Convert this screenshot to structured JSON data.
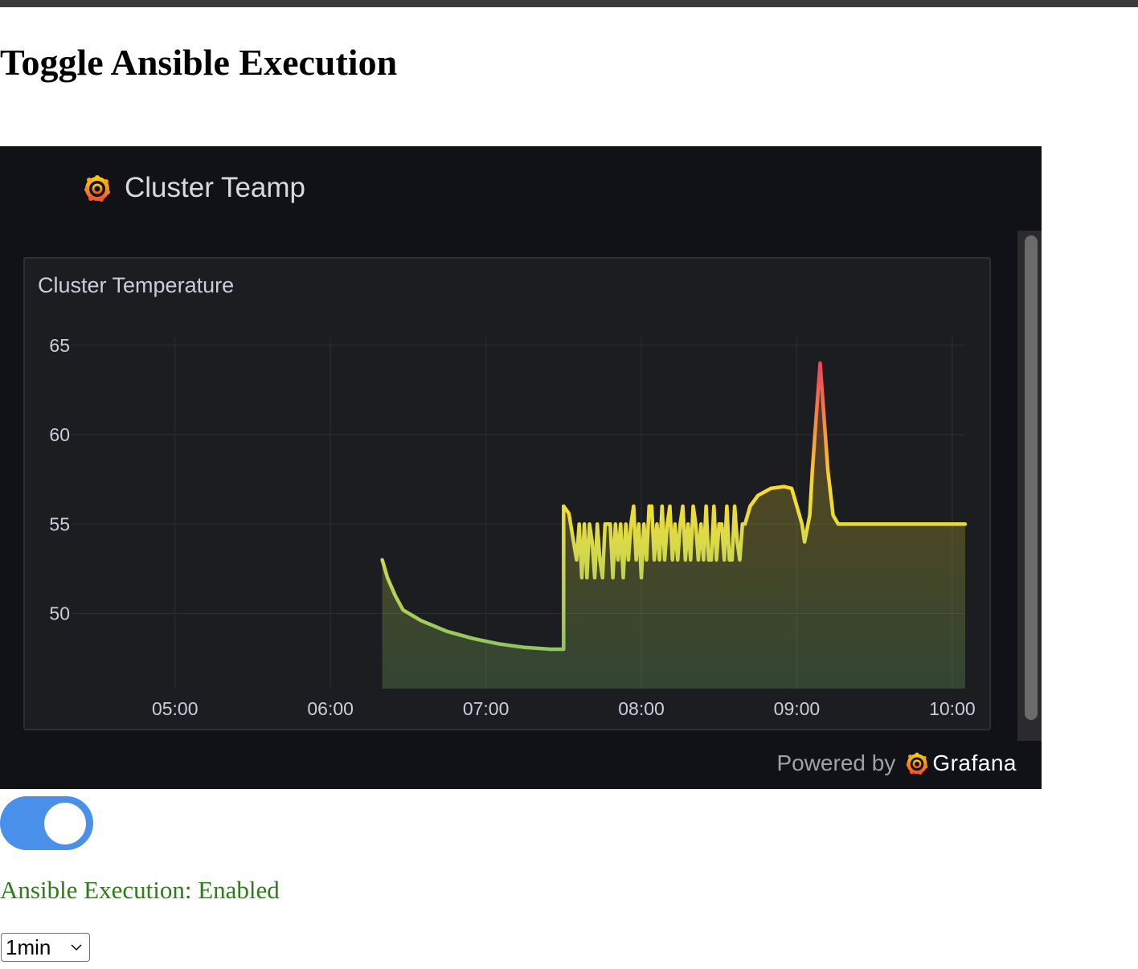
{
  "page": {
    "heading": "Toggle Ansible Execution"
  },
  "embed": {
    "dashboard_title": "Cluster Teamp",
    "footer_text": "Powered by",
    "footer_brand": "Grafana",
    "icons": [
      "grafana-logo-icon",
      "grafana-logo-icon"
    ]
  },
  "chart_data": {
    "type": "area",
    "title": "Cluster Temperature",
    "xlabel": "",
    "ylabel": "",
    "x_ticks": [
      "05:00",
      "06:00",
      "07:00",
      "08:00",
      "09:00",
      "10:00"
    ],
    "y_ticks": [
      50,
      55,
      60,
      65
    ],
    "ylim": [
      45.8,
      65.8
    ],
    "xlim": [
      "04:12",
      "10:05"
    ],
    "grid": true,
    "legend": "none",
    "colors": {
      "low": "#73bf69",
      "mid": "#fade2a",
      "high": "#f2495c"
    },
    "series": [
      {
        "x": [
          "06:20",
          "06:22",
          "06:25",
          "06:28",
          "06:35",
          "06:45",
          "06:55",
          "07:05",
          "07:15",
          "07:25",
          "07:30",
          "07:30",
          "07:32",
          "07:35",
          "07:36",
          "07:37",
          "07:38",
          "07:39",
          "07:40",
          "07:41",
          "07:42",
          "07:43",
          "07:44",
          "07:45",
          "07:46",
          "07:47",
          "07:48",
          "07:49",
          "07:50",
          "07:51",
          "07:52",
          "07:53",
          "07:54",
          "07:55",
          "07:56",
          "07:57",
          "07:58",
          "07:59",
          "08:00",
          "08:01",
          "08:02",
          "08:03",
          "08:04",
          "08:05",
          "08:06",
          "08:07",
          "08:08",
          "08:09",
          "08:10",
          "08:11",
          "08:12",
          "08:13",
          "08:14",
          "08:15",
          "08:16",
          "08:17",
          "08:18",
          "08:19",
          "08:20",
          "08:21",
          "08:22",
          "08:23",
          "08:24",
          "08:25",
          "08:26",
          "08:27",
          "08:28",
          "08:29",
          "08:30",
          "08:31",
          "08:32",
          "08:33",
          "08:34",
          "08:35",
          "08:36",
          "08:37",
          "08:38",
          "08:39",
          "08:40",
          "08:42",
          "08:45",
          "08:50",
          "08:55",
          "08:58",
          "09:00",
          "09:02",
          "09:03",
          "09:05",
          "09:06",
          "09:08",
          "09:09",
          "09:10",
          "09:12",
          "09:14",
          "09:16",
          "09:18",
          "09:20",
          "09:30",
          "09:45",
          "10:00",
          "10:05"
        ],
        "y": [
          53,
          52,
          51,
          50.2,
          49.6,
          49,
          48.6,
          48.3,
          48.1,
          48,
          48,
          56,
          55.6,
          53,
          55,
          52,
          55,
          52,
          55,
          54,
          52,
          55,
          53,
          52,
          55,
          55,
          55,
          52,
          55,
          53,
          55,
          52,
          55,
          53,
          55,
          56,
          53,
          55,
          52,
          55,
          53,
          56,
          56,
          53,
          55,
          53,
          56,
          53,
          55,
          56,
          53,
          55,
          53,
          55,
          56,
          53,
          55,
          53,
          56,
          55,
          53,
          55,
          53,
          56,
          53,
          53,
          56,
          53,
          55,
          55,
          53,
          56,
          53,
          53,
          56,
          54,
          53,
          55,
          55,
          56,
          56.6,
          57,
          57.1,
          57,
          56,
          55,
          54,
          55.5,
          58,
          62,
          64,
          62,
          58,
          55.5,
          55,
          55,
          55,
          55,
          55,
          55,
          55
        ]
      }
    ]
  },
  "toggle": {
    "state": "on"
  },
  "status": {
    "text": "Ansible Execution: Enabled"
  },
  "interval_select": {
    "value": "1min"
  }
}
